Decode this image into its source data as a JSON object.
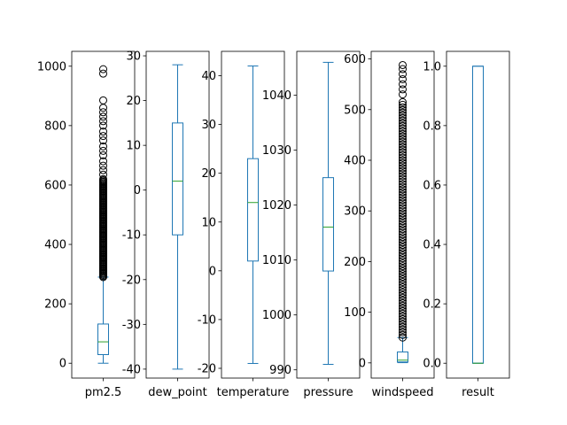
{
  "chart_data": [
    {
      "type": "box",
      "category": "pm2.5",
      "ylim": [
        -50,
        1050
      ],
      "yticks": [
        0,
        200,
        400,
        600,
        800,
        1000
      ],
      "box": {
        "whisker_low": 0,
        "q1": 29,
        "median": 72,
        "q3": 132,
        "whisker_high": 290
      },
      "outliers": {
        "dense_from": 290,
        "dense_to": 620,
        "sparse": [
          635,
          650,
          665,
          680,
          700,
          715,
          730,
          750,
          765,
          780,
          800,
          815,
          830,
          845,
          860,
          885,
          975,
          990
        ]
      }
    },
    {
      "type": "box",
      "category": "dew_point",
      "ylim": [
        -42,
        31
      ],
      "yticks": [
        -40,
        -30,
        -20,
        -10,
        0,
        10,
        20,
        30
      ],
      "box": {
        "whisker_low": -40,
        "q1": -10,
        "median": 2,
        "q3": 15,
        "whisker_high": 28
      },
      "outliers": null
    },
    {
      "type": "box",
      "category": "temperature",
      "ylim": [
        -22,
        45
      ],
      "yticks": [
        -20,
        -10,
        0,
        10,
        20,
        30,
        40
      ],
      "box": {
        "whisker_low": -19,
        "q1": 2,
        "median": 14,
        "q3": 23,
        "whisker_high": 42
      },
      "outliers": null
    },
    {
      "type": "box",
      "category": "pressure",
      "ylim": [
        988.5,
        1048
      ],
      "yticks": [
        990,
        1000,
        1010,
        1020,
        1030,
        1040
      ],
      "box": {
        "whisker_low": 991,
        "q1": 1008,
        "median": 1016,
        "q3": 1025,
        "whisker_high": 1046
      },
      "outliers": null
    },
    {
      "type": "box",
      "category": "windspeed",
      "ylim": [
        -30,
        615
      ],
      "yticks": [
        0,
        100,
        200,
        300,
        400,
        500,
        600
      ],
      "box": {
        "whisker_low": 0.45,
        "q1": 1.8,
        "median": 5.4,
        "q3": 21.5,
        "whisker_high": 50
      },
      "outliers": {
        "dense_from": 50,
        "dense_to": 520,
        "sparse": [
          530,
          540,
          550,
          560,
          570,
          580,
          588
        ]
      }
    },
    {
      "type": "box",
      "category": "result",
      "ylim": [
        -0.05,
        1.05
      ],
      "yticks": [
        "0.0",
        "0.2",
        "0.4",
        "0.6",
        "0.8",
        "1.0"
      ],
      "box": {
        "whisker_low": 0,
        "q1": 0,
        "median": 0,
        "q3": 1,
        "whisker_high": 1
      },
      "outliers": null
    }
  ],
  "colors": {
    "box": "#1f77b4",
    "median": "#2ca02c",
    "outlier": "#000000",
    "axes": "#000000",
    "background": "#ffffff"
  }
}
